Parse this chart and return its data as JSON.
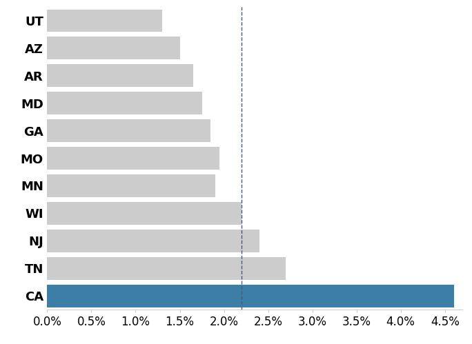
{
  "states": [
    "CA",
    "TN",
    "NJ",
    "WI",
    "MN",
    "MO",
    "GA",
    "MD",
    "AR",
    "AZ",
    "UT"
  ],
  "values": [
    0.046,
    0.027,
    0.024,
    0.022,
    0.019,
    0.0195,
    0.0185,
    0.0175,
    0.0165,
    0.015,
    0.013
  ],
  "bar_colors": [
    "#3d7ea6",
    "#cccccc",
    "#cccccc",
    "#cccccc",
    "#cccccc",
    "#cccccc",
    "#cccccc",
    "#cccccc",
    "#cccccc",
    "#cccccc",
    "#cccccc"
  ],
  "vline_x": 0.022,
  "vline_color": "#4a5a70",
  "xlim": [
    0.0,
    0.047
  ],
  "xticks": [
    0.0,
    0.005,
    0.01,
    0.015,
    0.02,
    0.025,
    0.03,
    0.035,
    0.04,
    0.045
  ],
  "bar_height": 0.82,
  "background_color": "#ffffff",
  "label_fontsize": 13,
  "tick_fontsize": 12,
  "label_fontweight": "bold"
}
